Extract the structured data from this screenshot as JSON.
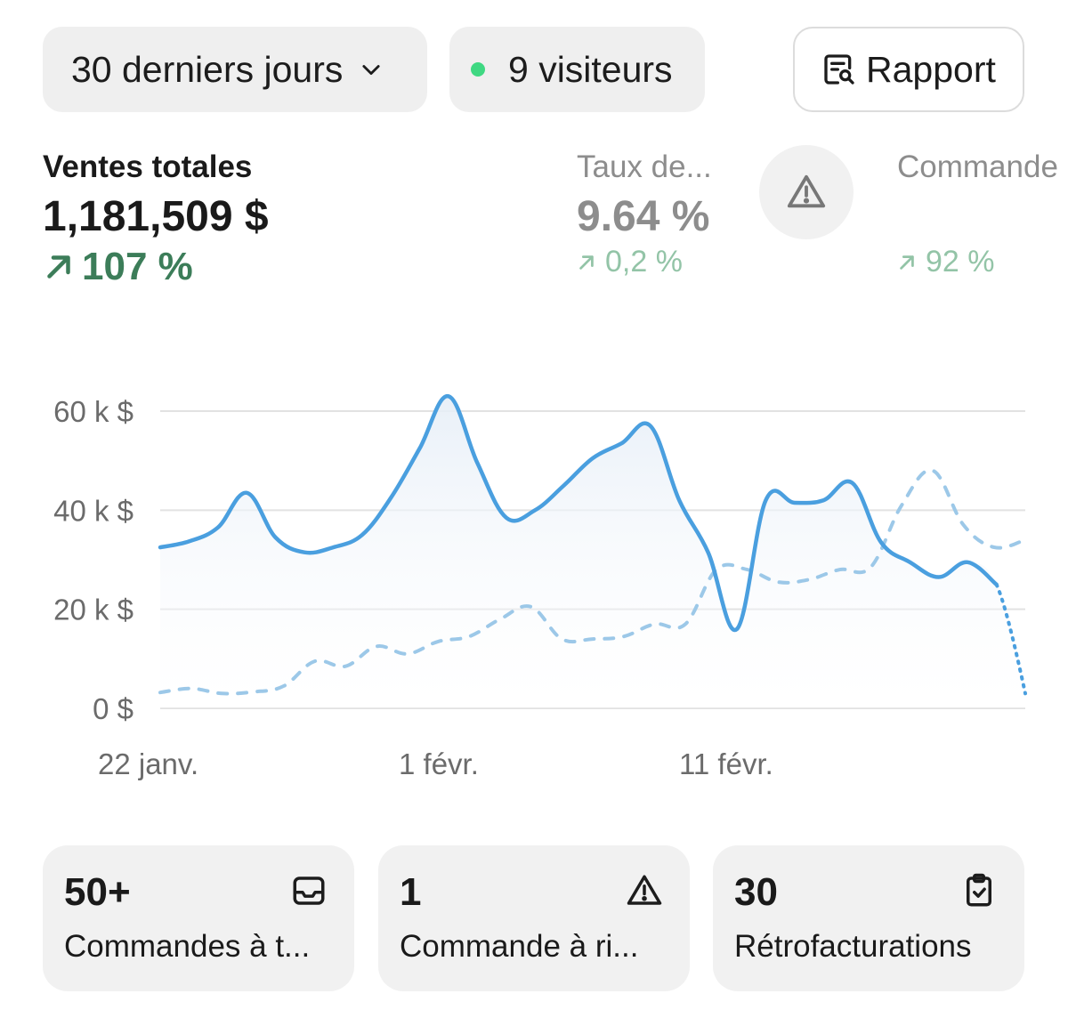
{
  "filters": {
    "range_label": "30 derniers jours",
    "visitors_label": "9 visiteurs",
    "visitors_dot_color": "#3fd882",
    "report_label": "Rapport"
  },
  "metrics": [
    {
      "label": "Ventes totales",
      "value": "1,181,509 $",
      "delta": "107 %",
      "delta_color": "#3c7d59"
    },
    {
      "label": "Taux de...",
      "value": "9.64 %",
      "delta": "0,2 %"
    },
    {
      "label": "Commande",
      "value": "",
      "delta": "92 %"
    }
  ],
  "chart_data": {
    "type": "line",
    "y_tick_labels": [
      "60 k $",
      "40 k $",
      "20 k $",
      "0 $"
    ],
    "x_tick_labels": [
      "22 janv.",
      "1 févr.",
      "11 févr."
    ],
    "ylim": [
      0,
      60000
    ],
    "grid": true,
    "series": [
      {
        "name": "",
        "color": "#4a9fdf",
        "style": "solid",
        "values": [
          32500,
          33700,
          36500,
          43500,
          34500,
          31500,
          32500,
          35000,
          42500,
          52500,
          63000,
          49500,
          38500,
          40000,
          45000,
          50500,
          53500,
          57000,
          42000,
          31500,
          16000,
          42000,
          41500,
          42000,
          45500,
          33500,
          29500,
          26500,
          29500,
          25000,
          3000
        ],
        "last_segment_dotted": true
      },
      {
        "name": "",
        "color": "#9cc8e8",
        "style": "dashed",
        "values": [
          3200,
          4000,
          3000,
          3300,
          4500,
          9500,
          8500,
          12500,
          11000,
          13500,
          14500,
          18000,
          20500,
          14000,
          14000,
          14500,
          17000,
          17000,
          28000,
          28000,
          25500,
          26000,
          28000,
          28500,
          41000,
          48000,
          37000,
          32500,
          34000
        ]
      }
    ]
  },
  "cards": [
    {
      "number": "50+",
      "label": "Commandes à t...",
      "icon": "inbox-icon"
    },
    {
      "number": "1",
      "label": "Commande à ri...",
      "icon": "warning-icon"
    },
    {
      "number": "30",
      "label": "Rétrofacturations",
      "icon": "clipboard-check-icon"
    }
  ]
}
